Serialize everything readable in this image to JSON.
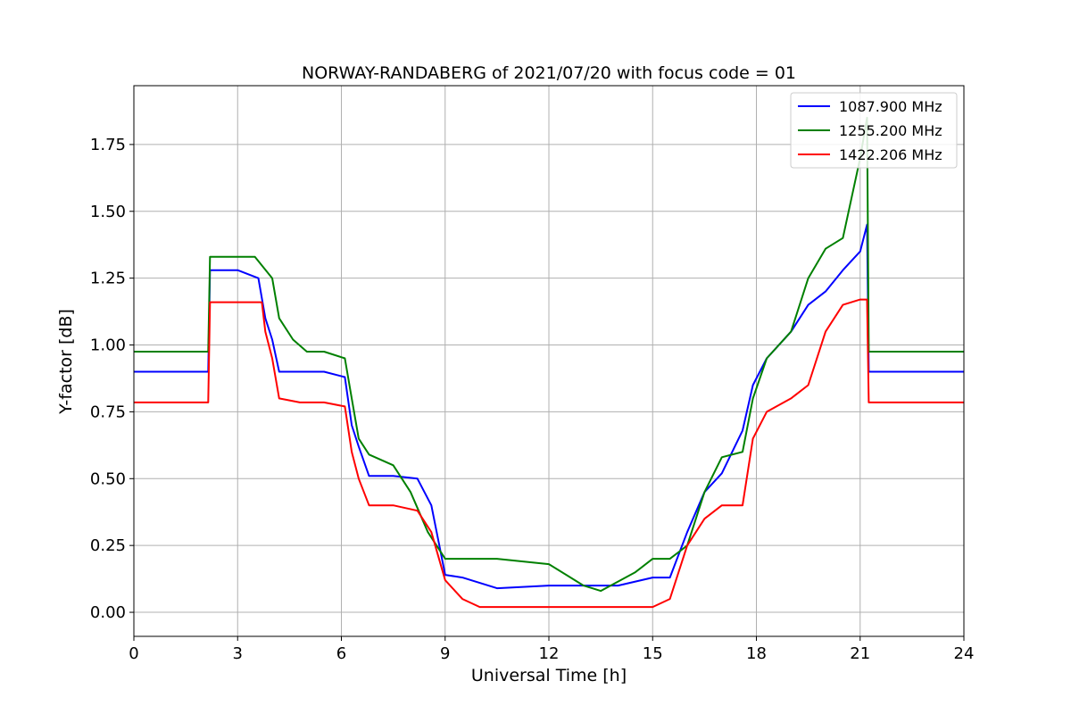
{
  "chart_data": {
    "type": "line",
    "title": "NORWAY-RANDABERG of 2021/07/20 with focus code = 01",
    "xlabel": "Universal Time [h]",
    "ylabel": "Y-factor [dB]",
    "xlim": [
      0,
      24
    ],
    "ylim": [
      -0.09,
      1.97
    ],
    "xticks": [
      0,
      3,
      6,
      9,
      12,
      15,
      18,
      21,
      24
    ],
    "yticks": [
      0.0,
      0.25,
      0.5,
      0.75,
      1.0,
      1.25,
      1.5,
      1.75
    ],
    "xtick_labels": [
      "0",
      "3",
      "6",
      "9",
      "12",
      "15",
      "18",
      "21",
      "24"
    ],
    "ytick_labels": [
      "0.00",
      "0.25",
      "0.50",
      "0.75",
      "1.00",
      "1.25",
      "1.50",
      "1.75"
    ],
    "grid": true,
    "legend": "top-right",
    "series": [
      {
        "name": "1087.900 MHz",
        "color": "#0000ff",
        "x": [
          0,
          2.15,
          2.2,
          3,
          3.6,
          3.8,
          4.0,
          4.2,
          4.8,
          5.5,
          6.1,
          6.3,
          6.5,
          6.8,
          7.5,
          8.2,
          8.6,
          9.0,
          9.5,
          10.5,
          12.0,
          13.0,
          14.0,
          15.0,
          15.5,
          16.0,
          16.5,
          17.0,
          17.6,
          17.9,
          18.3,
          19.0,
          19.5,
          20.0,
          20.5,
          21.0,
          21.2,
          21.25,
          24
        ],
        "y": [
          0.9,
          0.9,
          1.28,
          1.28,
          1.25,
          1.1,
          1.02,
          0.9,
          0.9,
          0.9,
          0.88,
          0.7,
          0.62,
          0.51,
          0.51,
          0.5,
          0.4,
          0.14,
          0.13,
          0.09,
          0.1,
          0.1,
          0.1,
          0.13,
          0.13,
          0.3,
          0.45,
          0.52,
          0.68,
          0.85,
          0.95,
          1.05,
          1.15,
          1.2,
          1.28,
          1.35,
          1.45,
          0.9,
          0.9
        ]
      },
      {
        "name": "1255.200 MHz",
        "color": "#008000",
        "x": [
          0,
          2.15,
          2.2,
          3,
          3.5,
          4.0,
          4.2,
          4.6,
          5.0,
          5.5,
          6.1,
          6.3,
          6.5,
          6.8,
          7.5,
          8.0,
          8.5,
          9.0,
          9.5,
          10.5,
          12.0,
          13.0,
          13.5,
          14.5,
          15.0,
          15.5,
          16.0,
          16.5,
          17.0,
          17.6,
          17.9,
          18.3,
          19.0,
          19.5,
          20.0,
          20.5,
          21.0,
          21.2,
          21.25,
          24
        ],
        "y": [
          0.975,
          0.975,
          1.33,
          1.33,
          1.33,
          1.25,
          1.1,
          1.02,
          0.975,
          0.975,
          0.95,
          0.8,
          0.65,
          0.59,
          0.55,
          0.45,
          0.3,
          0.2,
          0.2,
          0.2,
          0.18,
          0.1,
          0.08,
          0.15,
          0.2,
          0.2,
          0.25,
          0.45,
          0.58,
          0.6,
          0.8,
          0.95,
          1.05,
          1.25,
          1.36,
          1.4,
          1.7,
          1.85,
          0.975,
          0.975
        ]
      },
      {
        "name": "1422.206 MHz",
        "color": "#ff0000",
        "x": [
          0,
          2.15,
          2.2,
          3,
          3.7,
          3.8,
          4.0,
          4.2,
          4.8,
          5.5,
          6.1,
          6.3,
          6.5,
          6.8,
          7.5,
          8.2,
          8.6,
          9.0,
          9.5,
          10.0,
          11.0,
          12.0,
          13.0,
          14.0,
          15.0,
          15.5,
          16.0,
          16.5,
          17.0,
          17.6,
          17.9,
          18.3,
          19.0,
          19.5,
          20.0,
          20.5,
          21.0,
          21.2,
          21.25,
          24
        ],
        "y": [
          0.785,
          0.785,
          1.16,
          1.16,
          1.16,
          1.05,
          0.95,
          0.8,
          0.785,
          0.785,
          0.77,
          0.6,
          0.5,
          0.4,
          0.4,
          0.38,
          0.3,
          0.12,
          0.05,
          0.02,
          0.02,
          0.02,
          0.02,
          0.02,
          0.02,
          0.05,
          0.25,
          0.35,
          0.4,
          0.4,
          0.65,
          0.75,
          0.8,
          0.85,
          1.05,
          1.15,
          1.17,
          1.17,
          0.785,
          0.785
        ]
      }
    ]
  }
}
